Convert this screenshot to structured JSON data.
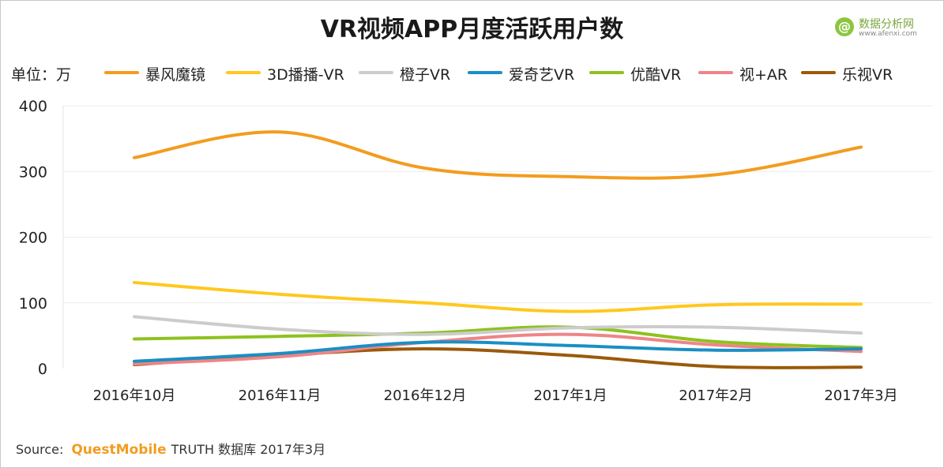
{
  "header": {
    "title": "VR视频APP月度活跃用户数",
    "unit_label": "单位：万"
  },
  "logo": {
    "glyph": "@",
    "cn": "数据分析网",
    "en": "www.afenxi.com",
    "color": "#8cc63f"
  },
  "footer": {
    "source_label": "Source:",
    "brand": "QuestMobile",
    "rest": "TRUTH 数据库 2017年3月"
  },
  "chart_data": {
    "type": "line",
    "title": "VR视频APP月度活跃用户数",
    "xlabel": "",
    "ylabel": "单位：万",
    "categories": [
      "2016年10月",
      "2016年11月",
      "2016年12月",
      "2017年1月",
      "2017年2月",
      "2017年3月"
    ],
    "ylim": [
      0,
      400
    ],
    "yticks": [
      0,
      100,
      200,
      300,
      400
    ],
    "ytick_labels": [
      "0",
      "100",
      "200",
      "300",
      "400"
    ],
    "grid": true,
    "smooth": true,
    "legend_position": "top",
    "series": [
      {
        "name": "暴风魔镜",
        "color": "#f39c1f",
        "values": [
          321,
          360,
          305,
          292,
          295,
          337
        ]
      },
      {
        "name": "3D播播-VR",
        "color": "#ffc81e",
        "values": [
          131,
          113,
          100,
          87,
          97,
          98
        ]
      },
      {
        "name": "橙子VR",
        "color": "#cccccc",
        "values": [
          79,
          60,
          52,
          62,
          63,
          54
        ]
      },
      {
        "name": "爱奇艺VR",
        "color": "#1a8fc4",
        "values": [
          11,
          23,
          40,
          35,
          28,
          30
        ]
      },
      {
        "name": "优酷VR",
        "color": "#8dc21f",
        "values": [
          45,
          49,
          54,
          63,
          41,
          32
        ]
      },
      {
        "name": "视+AR",
        "color": "#ee8587",
        "values": [
          7,
          18,
          40,
          52,
          36,
          26
        ]
      },
      {
        "name": "乐视VR",
        "color": "#9a5a0a",
        "values": [
          6,
          20,
          30,
          20,
          3,
          2
        ]
      }
    ]
  }
}
